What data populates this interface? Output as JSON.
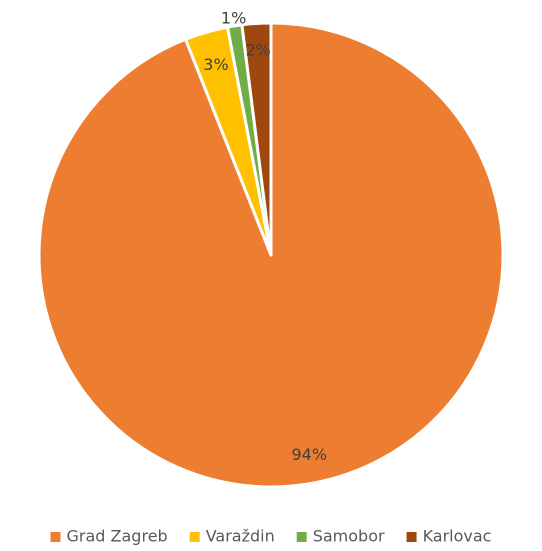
{
  "chart_data": {
    "type": "pie",
    "categories": [
      "Grad Zagreb",
      "Varaždin",
      "Samobor",
      "Karlovac"
    ],
    "values": [
      94,
      3,
      1,
      2
    ],
    "value_labels": [
      "94%",
      "3%",
      "1%",
      "2%"
    ],
    "colors": [
      "#ED7D31",
      "#FFC000",
      "#70AD47",
      "#9E480E"
    ],
    "legend": "bottom"
  }
}
